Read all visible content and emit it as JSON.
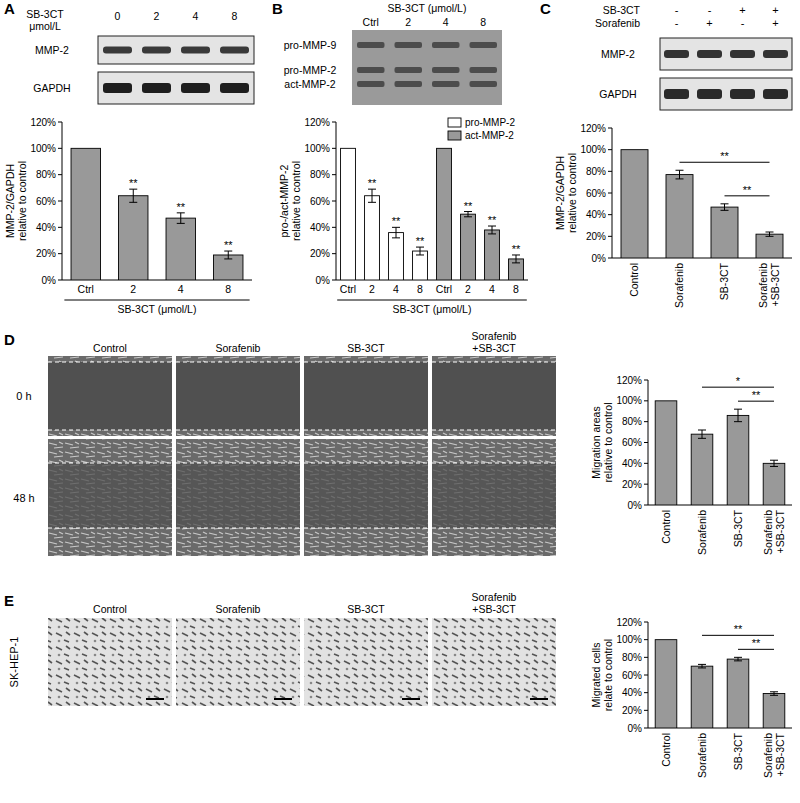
{
  "chart_data": [
    {
      "type": "bar",
      "panel": "A",
      "blot": {
        "treatment": "SB-3CT",
        "unit": "μmol/L",
        "lanes": [
          "0",
          "2",
          "4",
          "8"
        ],
        "bands": [
          "MMP-2",
          "GAPDH"
        ]
      },
      "y_label": "MMP-2/GAPDH relative to control",
      "x_label": "SB-3CT (μmol/L)",
      "categories": [
        "Ctrl",
        "2",
        "4",
        "8"
      ],
      "values": [
        100,
        64,
        47,
        19
      ],
      "errors": [
        null,
        5,
        4,
        3
      ],
      "annotations": [
        null,
        "**",
        "**",
        "**"
      ],
      "color": "#999999",
      "ylim": [
        0,
        120
      ],
      "yticks": [
        {
          "value": 0,
          "label": "0%"
        },
        {
          "value": 20,
          "label": "20%"
        },
        {
          "value": 40,
          "label": "40%"
        },
        {
          "value": 60,
          "label": "60%"
        },
        {
          "value": 80,
          "label": "80%"
        },
        {
          "value": 100,
          "label": "100%"
        },
        {
          "value": 120,
          "label": "120%"
        }
      ]
    },
    {
      "type": "bar",
      "panel": "B",
      "blot": {
        "treatment": "SB-3CT (μmol/L)",
        "lanes": [
          "Ctrl",
          "2",
          "4",
          "8"
        ],
        "bands": [
          "pro-MMP-9",
          "pro-MMP-2",
          "act-MMP-2"
        ]
      },
      "y_label": "pro-/act-MMP-2 relative to control",
      "x_label": "SB-3CT (μmol/L)",
      "categories": [
        "Ctrl",
        "2",
        "4",
        "8",
        "Ctrl",
        "2",
        "4",
        "8"
      ],
      "series": [
        {
          "name": "pro-MMP-2",
          "color": "#ffffff",
          "values": [
            100,
            64,
            36,
            22,
            null,
            null,
            null,
            null
          ],
          "errors": [
            null,
            5,
            4,
            3,
            null,
            null,
            null,
            null
          ],
          "annotations": [
            null,
            "**",
            "**",
            "**",
            null,
            null,
            null,
            null
          ]
        },
        {
          "name": "act-MMP-2",
          "color": "#999999",
          "values": [
            null,
            null,
            null,
            null,
            100,
            50,
            38,
            16
          ],
          "errors": [
            null,
            null,
            null,
            null,
            null,
            2,
            3,
            3
          ],
          "annotations": [
            null,
            null,
            null,
            null,
            null,
            "**",
            "**",
            "**"
          ]
        }
      ],
      "legend": "top-right",
      "ylim": [
        0,
        120
      ],
      "yticks": [
        {
          "value": 0,
          "label": "0%"
        },
        {
          "value": 20,
          "label": "20%"
        },
        {
          "value": 40,
          "label": "40%"
        },
        {
          "value": 60,
          "label": "60%"
        },
        {
          "value": 80,
          "label": "80%"
        },
        {
          "value": 100,
          "label": "100%"
        },
        {
          "value": 120,
          "label": "120%"
        }
      ]
    },
    {
      "type": "bar",
      "panel": "C",
      "blot": {
        "rows": [
          {
            "label": "SB-3CT",
            "signs": [
              "-",
              "-",
              "+",
              "+"
            ]
          },
          {
            "label": "Sorafenib",
            "signs": [
              "-",
              "+",
              "-",
              "+"
            ]
          }
        ],
        "bands": [
          "MMP-2",
          "GAPDH"
        ]
      },
      "y_label": "MMP-2/GAPDH relative to control",
      "categories": [
        "Control",
        "Sorafenib",
        "SB-3CT",
        "Sorafenib +SB-3CT"
      ],
      "values": [
        100,
        77,
        47,
        22
      ],
      "errors": [
        null,
        4,
        3,
        2
      ],
      "comparisons": [
        {
          "between": [
            "Sorafenib",
            "Sorafenib +SB-3CT"
          ],
          "label": "**"
        },
        {
          "between": [
            "SB-3CT",
            "Sorafenib +SB-3CT"
          ],
          "label": "**"
        }
      ],
      "color": "#999999",
      "ylim": [
        0,
        120
      ],
      "yticks": [
        {
          "value": 0,
          "label": "0%"
        },
        {
          "value": 20,
          "label": "20%"
        },
        {
          "value": 40,
          "label": "40%"
        },
        {
          "value": 60,
          "label": "60%"
        },
        {
          "value": 80,
          "label": "80%"
        },
        {
          "value": 100,
          "label": "100%"
        },
        {
          "value": 120,
          "label": "120%"
        }
      ]
    },
    {
      "type": "bar",
      "panel": "D",
      "images": {
        "columns": [
          "Control",
          "Sorafenib",
          "SB-3CT",
          "Sorafenib +SB-3CT"
        ],
        "rows": [
          "0 h",
          "48 h"
        ]
      },
      "y_label": "Migration areas relative to control",
      "categories": [
        "Control",
        "Sorafenib",
        "SB-3CT",
        "Sorafenib +SB-3CT"
      ],
      "values": [
        100,
        68,
        86,
        40
      ],
      "errors": [
        null,
        4,
        6,
        3
      ],
      "comparisons": [
        {
          "between": [
            "Sorafenib",
            "Sorafenib +SB-3CT"
          ],
          "label": "*"
        },
        {
          "between": [
            "SB-3CT",
            "Sorafenib +SB-3CT"
          ],
          "label": "**"
        }
      ],
      "color": "#999999",
      "ylim": [
        0,
        120
      ],
      "yticks": [
        {
          "value": 0,
          "label": "0%"
        },
        {
          "value": 20,
          "label": "20%"
        },
        {
          "value": 40,
          "label": "40%"
        },
        {
          "value": 60,
          "label": "60%"
        },
        {
          "value": 80,
          "label": "80%"
        },
        {
          "value": 100,
          "label": "100%"
        },
        {
          "value": 120,
          "label": "120%"
        }
      ]
    },
    {
      "type": "bar",
      "panel": "E",
      "images": {
        "columns": [
          "Control",
          "Sorafenib",
          "SB-3CT",
          "Sorafenib +SB-3CT"
        ],
        "cell_line": "SK-HEP-1"
      },
      "y_label": "Migrated cells relate to control",
      "categories": [
        "Control",
        "Sorafenib",
        "SB-3CT",
        "Sorafenib +SB-3CT"
      ],
      "values": [
        100,
        70,
        78,
        39
      ],
      "errors": [
        null,
        2,
        2,
        2
      ],
      "comparisons": [
        {
          "between": [
            "Sorafenib",
            "Sorafenib +SB-3CT"
          ],
          "label": "**"
        },
        {
          "between": [
            "SB-3CT",
            "Sorafenib +SB-3CT"
          ],
          "label": "**"
        }
      ],
      "color": "#999999",
      "ylim": [
        0,
        120
      ],
      "yticks": [
        {
          "value": 0,
          "label": "0%"
        },
        {
          "value": 20,
          "label": "20%"
        },
        {
          "value": 40,
          "label": "40%"
        },
        {
          "value": 60,
          "label": "60%"
        },
        {
          "value": 80,
          "label": "80%"
        },
        {
          "value": 100,
          "label": "100%"
        },
        {
          "value": 120,
          "label": "120%"
        }
      ]
    }
  ]
}
